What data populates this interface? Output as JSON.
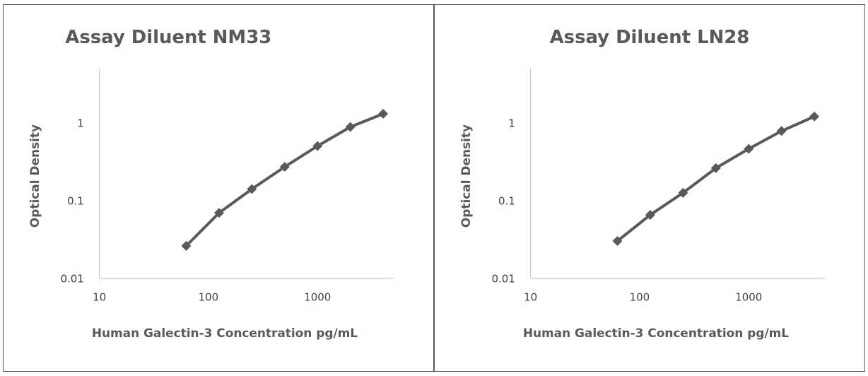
{
  "chart_data": [
    {
      "type": "line",
      "title": "Assay Diluent NM33",
      "xlabel": "Human Galectin-3  Concentration pg/mL",
      "ylabel": "Optical Density",
      "xscale": "log",
      "yscale": "log",
      "xlim": [
        10,
        5000
      ],
      "ylim": [
        0.01,
        5
      ],
      "xticks": [
        "10",
        "100",
        "1000"
      ],
      "yticks": [
        "0.01",
        "0.1",
        "1"
      ],
      "grid": false,
      "color": "#595959",
      "marker": "diamond",
      "series": [
        {
          "x": [
            62.5,
            125,
            250,
            500,
            1000,
            2000,
            4000
          ],
          "y": [
            0.026,
            0.069,
            0.14,
            0.27,
            0.5,
            0.88,
            1.3
          ]
        }
      ]
    },
    {
      "type": "line",
      "title": "Assay Diluent LN28",
      "xlabel": "Human Galectin-3  Concentration pg/mL",
      "ylabel": "Optical Density",
      "xscale": "log",
      "yscale": "log",
      "xlim": [
        10,
        5000
      ],
      "ylim": [
        0.01,
        5
      ],
      "xticks": [
        "10",
        "100",
        "1000"
      ],
      "yticks": [
        "0.01",
        "0.1",
        "1"
      ],
      "grid": false,
      "color": "#595959",
      "marker": "diamond",
      "series": [
        {
          "x": [
            62.5,
            125,
            250,
            500,
            1000,
            2000,
            4000
          ],
          "y": [
            0.03,
            0.065,
            0.125,
            0.26,
            0.46,
            0.78,
            1.2
          ]
        }
      ]
    }
  ]
}
